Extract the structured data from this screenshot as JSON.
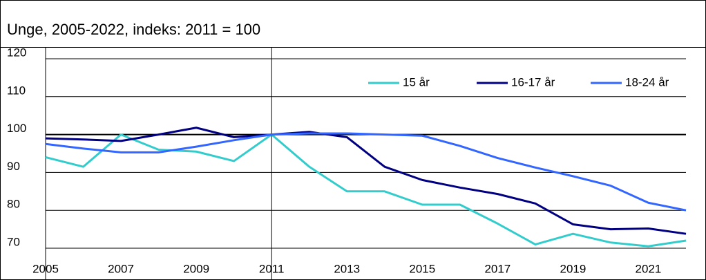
{
  "chart_data": {
    "type": "line",
    "title": "Unge, 2005-2022, indeks: 2011 = 100",
    "x": [
      2005,
      2006,
      2007,
      2008,
      2009,
      2010,
      2011,
      2012,
      2013,
      2014,
      2015,
      2016,
      2017,
      2018,
      2019,
      2020,
      2021,
      2022
    ],
    "series": [
      {
        "name": "15 år",
        "color": "#33cccc",
        "values": [
          94,
          91.5,
          100,
          96,
          95.5,
          93,
          100,
          91.5,
          85,
          85,
          81.5,
          81.5,
          76.5,
          71,
          73.8,
          71.5,
          70.5,
          72
        ]
      },
      {
        "name": "16-17 år",
        "color": "#000080",
        "values": [
          99,
          98.7,
          98.3,
          100,
          101.8,
          99.3,
          100,
          100.7,
          99.3,
          91.5,
          88,
          86,
          84.3,
          81.8,
          76.3,
          75,
          75.2,
          73.8
        ]
      },
      {
        "name": "18-24 år",
        "color": "#3366ff",
        "values": [
          97.5,
          96.3,
          95.3,
          95.3,
          96.8,
          98.5,
          100,
          100.3,
          100.3,
          100,
          99.7,
          97,
          93.8,
          91.3,
          89,
          86.5,
          82,
          80
        ]
      }
    ],
    "xlim": [
      2005,
      2022
    ],
    "xticks": [
      2005,
      2007,
      2009,
      2011,
      2013,
      2015,
      2017,
      2019,
      2021
    ],
    "ylim": [
      70,
      120
    ],
    "yticks": [
      70,
      80,
      90,
      100,
      110,
      120
    ],
    "reference_lines": {
      "x": 2011,
      "y": 100
    },
    "grid": true,
    "legend": "top-right"
  }
}
